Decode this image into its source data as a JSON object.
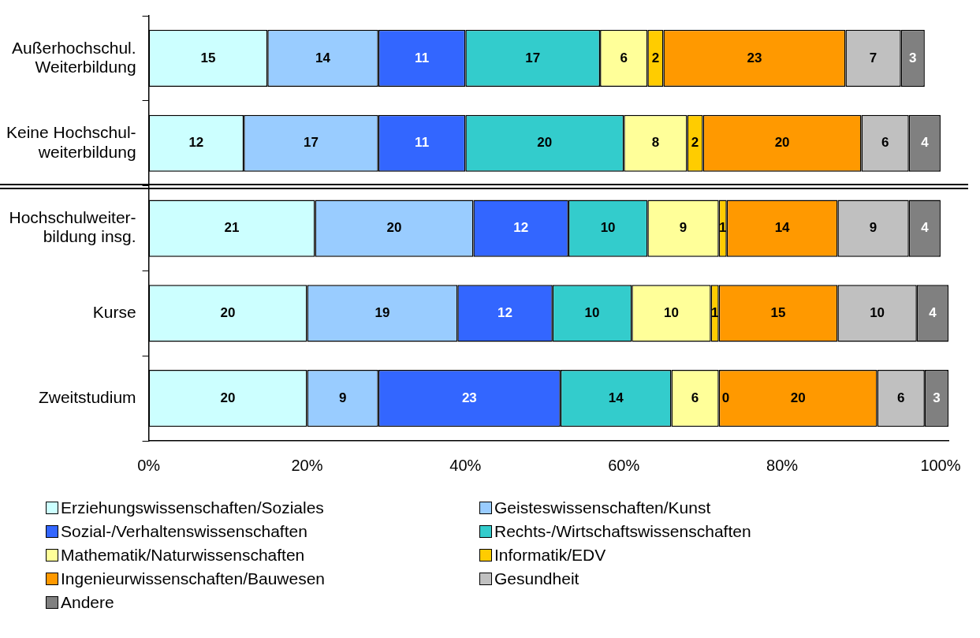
{
  "chart_data": {
    "type": "bar",
    "orientation": "horizontal",
    "stacked": true,
    "categories": [
      "Außerhochschul.\nWeiterbildung",
      "Keine Hochschul-\nweiterbildung",
      "Hochschulweiter-\nbildung insg.",
      "Kurse",
      "Zweitstudium"
    ],
    "series": [
      {
        "name": "Erziehungswissenschaften/Soziales",
        "color": "#ccffff",
        "values": [
          15,
          12,
          21,
          20,
          20
        ],
        "value_labels": [
          "15",
          "12",
          "21",
          "20",
          "20"
        ]
      },
      {
        "name": "Geisteswissenschaften/Kunst",
        "color": "#99ccff",
        "values": [
          14,
          17,
          20,
          19,
          9
        ],
        "value_labels": [
          "14",
          "17",
          "20",
          "19",
          "9"
        ]
      },
      {
        "name": "Sozial-/Verhaltenswissenschaften",
        "color": "#3366ff",
        "values": [
          11,
          11,
          12,
          12,
          23
        ],
        "value_labels": [
          "11",
          "11",
          "12",
          "12",
          "23"
        ]
      },
      {
        "name": "Rechts-/Wirtschaftswissenschaften",
        "color": "#33cccc",
        "values": [
          17,
          20,
          10,
          10,
          14
        ],
        "value_labels": [
          "17",
          "20",
          "10",
          "10",
          "14"
        ]
      },
      {
        "name": "Mathematik/Naturwissenschaften",
        "color": "#ffff99",
        "values": [
          6,
          8,
          9,
          10,
          6
        ],
        "value_labels": [
          "6",
          "8",
          "9",
          "10",
          "6"
        ]
      },
      {
        "name": "Informatik/EDV",
        "color": "#ffcc00",
        "values": [
          2,
          2,
          1,
          1,
          0
        ],
        "value_labels": [
          "2",
          "2",
          "1",
          "1",
          null
        ]
      },
      {
        "name": "Ingenieurwissenschaften/Bauwesen",
        "color": "#ff9900",
        "values": [
          23,
          20,
          14,
          15,
          20
        ],
        "value_labels": [
          "23",
          "20",
          "14",
          "15",
          "20"
        ]
      },
      {
        "name": "Gesundheit",
        "color": "#c0c0c0",
        "values": [
          7,
          6,
          9,
          10,
          6
        ],
        "value_labels": [
          "7",
          "6",
          "9",
          "10",
          "6"
        ]
      },
      {
        "name": "Andere",
        "color": "#808080",
        "values": [
          3,
          4,
          4,
          4,
          3
        ],
        "value_labels": [
          "3",
          "4",
          "4",
          "4",
          "3"
        ]
      }
    ],
    "annotations": [
      {
        "text": "0",
        "x": 72,
        "y": "Zweitstudium"
      }
    ],
    "xlim": [
      0,
      101
    ],
    "xticks": [
      {
        "value": 0,
        "label": "0%"
      },
      {
        "value": 20,
        "label": "20%"
      },
      {
        "value": 40,
        "label": "40%"
      },
      {
        "value": 60,
        "label": "60%"
      },
      {
        "value": 80,
        "label": "80%"
      },
      {
        "value": 100,
        "label": "100%"
      }
    ],
    "grid": false,
    "legend": "bottom"
  }
}
